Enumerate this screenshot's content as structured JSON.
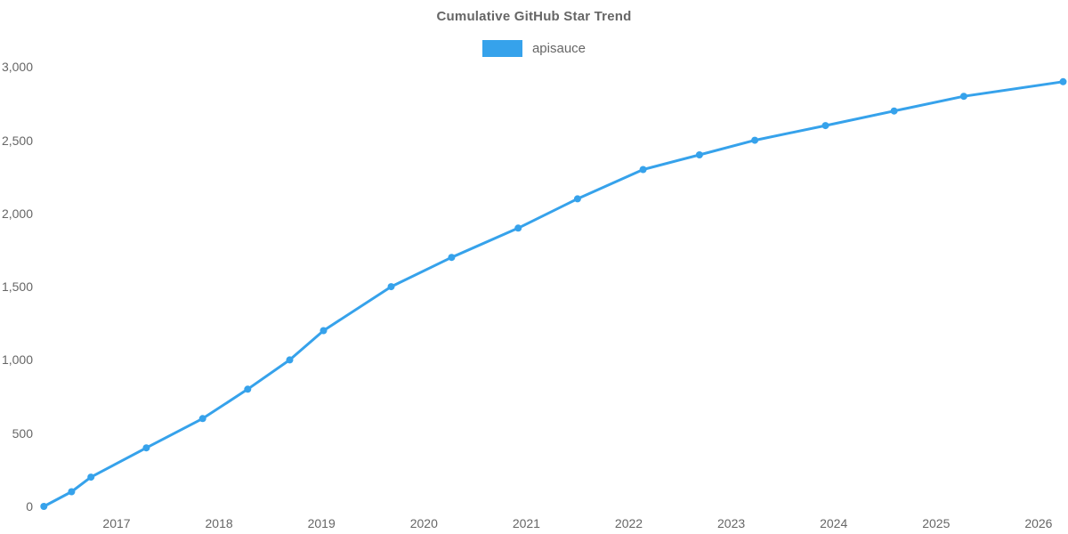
{
  "title": "Cumulative GitHub Star Trend",
  "legend": {
    "items": [
      {
        "label": "apisauce",
        "color": "#36a2eb"
      }
    ]
  },
  "chart_data": {
    "type": "line",
    "title": "Cumulative GitHub Star Trend",
    "xlabel": "",
    "ylabel": "",
    "grid": false,
    "legend_position": "top-center",
    "x_ticks": [
      2017,
      2018,
      2019,
      2020,
      2021,
      2022,
      2023,
      2024,
      2025,
      2026
    ],
    "y_ticks": [
      0,
      500,
      1000,
      1500,
      2000,
      2500,
      3000
    ],
    "x_range": [
      2016.29,
      2026.24
    ],
    "y_range": [
      0,
      3000
    ],
    "series": [
      {
        "name": "apisauce",
        "color": "#36a2eb",
        "points": [
          [
            2016.29,
            0
          ],
          [
            2016.56,
            100
          ],
          [
            2016.75,
            200
          ],
          [
            2017.29,
            400
          ],
          [
            2017.84,
            600
          ],
          [
            2018.28,
            800
          ],
          [
            2018.69,
            1000
          ],
          [
            2019.02,
            1200
          ],
          [
            2019.68,
            1500
          ],
          [
            2020.27,
            1700
          ],
          [
            2020.92,
            1900
          ],
          [
            2021.5,
            2100
          ],
          [
            2022.14,
            2300
          ],
          [
            2022.69,
            2400
          ],
          [
            2023.23,
            2500
          ],
          [
            2023.92,
            2600
          ],
          [
            2024.59,
            2700
          ],
          [
            2025.27,
            2800
          ],
          [
            2026.24,
            2900
          ]
        ]
      }
    ]
  },
  "colors": {
    "accent": "#36a2eb",
    "text": "#666666",
    "background": "#ffffff"
  }
}
